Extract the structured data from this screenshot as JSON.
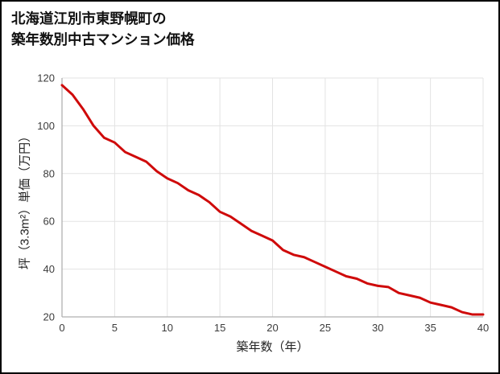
{
  "title": {
    "line1": "北海道江別市東野幌町の",
    "line2": "築年数別中古マンション価格"
  },
  "chart_data": {
    "type": "line",
    "title": "北海道江別市東野幌町の築年数別中古マンション価格",
    "xlabel": "築年数（年）",
    "ylabel": "坪（3.3m²）単価（万円）",
    "x": [
      0,
      1,
      2,
      3,
      4,
      5,
      6,
      7,
      8,
      9,
      10,
      11,
      12,
      13,
      14,
      15,
      16,
      17,
      18,
      19,
      20,
      21,
      22,
      23,
      24,
      25,
      26,
      27,
      28,
      29,
      30,
      31,
      32,
      33,
      34,
      35,
      36,
      37,
      38,
      39,
      40
    ],
    "series": [
      {
        "name": "坪単価（万円）",
        "values": [
          117,
          113,
          107,
          100,
          95,
          93,
          89,
          87,
          85,
          81,
          78,
          76,
          73,
          71,
          68,
          64,
          62,
          59,
          56,
          54,
          52,
          48,
          46,
          45,
          43,
          41,
          39,
          37,
          36,
          34,
          33,
          32.5,
          30,
          29,
          28,
          26,
          25,
          24,
          22,
          21,
          21
        ]
      }
    ],
    "xlim": [
      0,
      40
    ],
    "ylim": [
      20,
      120
    ],
    "xticks": [
      0,
      5,
      10,
      15,
      20,
      25,
      30,
      35,
      40
    ],
    "yticks": [
      20,
      40,
      60,
      80,
      100,
      120
    ],
    "grid": true,
    "legend_position": "none",
    "line_color": "#cf0a0a",
    "grid_color": "#e3e3e3",
    "axis_color": "#b0b0b0",
    "tick_color": "#3c3c3c"
  }
}
